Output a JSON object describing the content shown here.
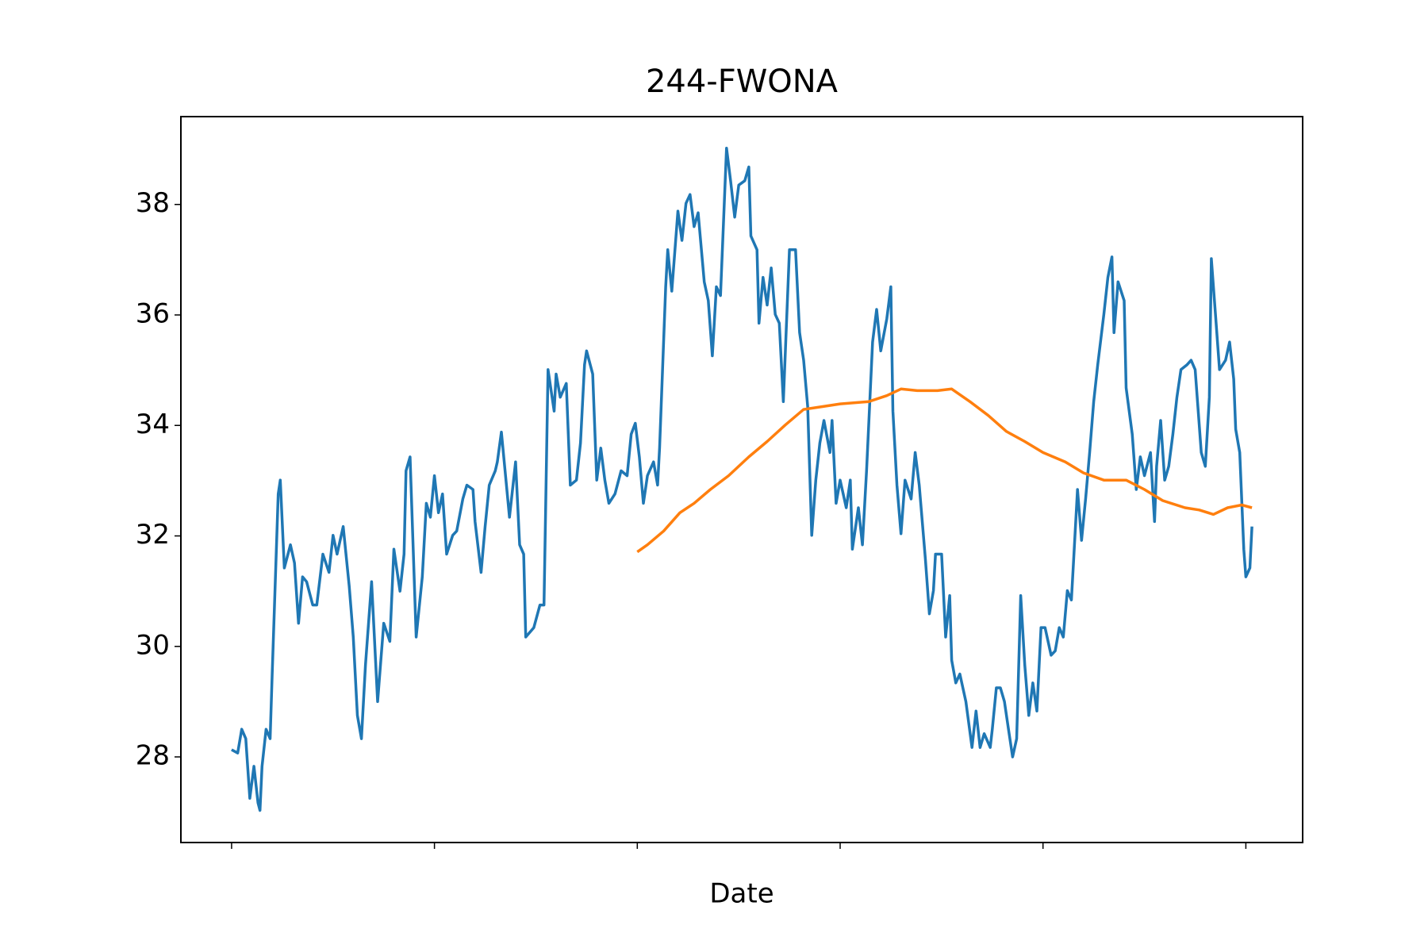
{
  "chart_data": {
    "type": "line",
    "title": "244-FWONA",
    "x_label": "Date",
    "xlim": [
      -25,
      528
    ],
    "xticks": [
      0,
      100,
      200,
      300,
      400,
      500
    ],
    "ylim": [
      26.45,
      39.59
    ],
    "yticks": [
      28,
      30,
      32,
      34,
      36,
      38
    ],
    "grid": false,
    "series": [
      {
        "color": "#1f77b4",
        "x": [
          0,
          3,
          5,
          7,
          9,
          11,
          13,
          14,
          15,
          17,
          19,
          20,
          23,
          24,
          26,
          29,
          31,
          33,
          35,
          37,
          40,
          42,
          45,
          48,
          50,
          52,
          55,
          58,
          60,
          62,
          64,
          66,
          69,
          72,
          75,
          78,
          80,
          83,
          85,
          86,
          88,
          91,
          94,
          96,
          98,
          100,
          102,
          104,
          106,
          109,
          111,
          114,
          116,
          119,
          120,
          123,
          125,
          127,
          130,
          131,
          133,
          137,
          140,
          142,
          144,
          145,
          149,
          152,
          154,
          156,
          159,
          160,
          162,
          165,
          167,
          170,
          172,
          174,
          175,
          178,
          180,
          182,
          184,
          186,
          189,
          192,
          195,
          197,
          199,
          201,
          203,
          205,
          208,
          210,
          211,
          214,
          215,
          217,
          220,
          222,
          224,
          226,
          228,
          230,
          233,
          235,
          237,
          239,
          241,
          244,
          246,
          248,
          250,
          253,
          255,
          256,
          259,
          260,
          262,
          264,
          266,
          268,
          270,
          272,
          275,
          278,
          280,
          282,
          284,
          286,
          288,
          290,
          292,
          295,
          296,
          298,
          300,
          303,
          305,
          306,
          309,
          311,
          313,
          316,
          318,
          320,
          323,
          325,
          326,
          328,
          330,
          332,
          335,
          337,
          339,
          342,
          344,
          346,
          347,
          350,
          352,
          354,
          355,
          357,
          359,
          362,
          365,
          367,
          369,
          371,
          374,
          375,
          377,
          379,
          381,
          383,
          385,
          387,
          389,
          391,
          393,
          395,
          397,
          399,
          401,
          404,
          406,
          408,
          410,
          412,
          414,
          415,
          417,
          419,
          421,
          423,
          425,
          427,
          430,
          432,
          434,
          435,
          437,
          440,
          441,
          444,
          446,
          448,
          450,
          453,
          455,
          456,
          458,
          460,
          462,
          464,
          466,
          468,
          471,
          473,
          475,
          478,
          480,
          482,
          483,
          485,
          487,
          490,
          492,
          494,
          495,
          497,
          499,
          500,
          502,
          503
        ],
        "values": [
          28.13,
          28.07,
          28.5,
          28.33,
          27.25,
          27.83,
          27.17,
          27.03,
          27.83,
          28.5,
          28.33,
          29.5,
          32.76,
          33.01,
          31.42,
          31.84,
          31.51,
          30.42,
          31.26,
          31.17,
          30.75,
          30.75,
          31.67,
          31.34,
          32.01,
          31.67,
          32.17,
          31.09,
          30.17,
          28.75,
          28.33,
          29.67,
          31.17,
          29.0,
          30.42,
          30.09,
          31.76,
          31.0,
          31.67,
          33.18,
          33.43,
          30.17,
          31.26,
          32.59,
          32.34,
          33.09,
          32.42,
          32.76,
          31.67,
          32.01,
          32.09,
          32.67,
          32.92,
          32.84,
          32.26,
          31.34,
          32.17,
          32.92,
          33.18,
          33.34,
          33.88,
          32.34,
          33.34,
          31.84,
          31.67,
          30.17,
          30.34,
          30.75,
          30.75,
          35.01,
          34.26,
          34.93,
          34.51,
          34.76,
          32.92,
          33.01,
          33.68,
          35.1,
          35.35,
          34.93,
          33.01,
          33.59,
          33.01,
          32.59,
          32.76,
          33.18,
          33.09,
          33.84,
          34.04,
          33.43,
          32.59,
          33.09,
          33.34,
          32.92,
          33.59,
          36.51,
          37.18,
          36.43,
          37.88,
          37.35,
          38.02,
          38.18,
          37.6,
          37.85,
          36.6,
          36.26,
          35.26,
          36.51,
          36.35,
          39.02,
          38.43,
          37.77,
          38.35,
          38.43,
          38.68,
          37.43,
          37.18,
          35.85,
          36.68,
          36.18,
          36.85,
          36.01,
          35.85,
          34.43,
          37.18,
          37.18,
          35.68,
          35.18,
          34.34,
          32.01,
          33.01,
          33.68,
          34.09,
          33.51,
          34.09,
          32.59,
          33.01,
          32.51,
          33.01,
          31.76,
          32.51,
          31.84,
          33.18,
          35.51,
          36.1,
          35.35,
          35.93,
          36.51,
          34.26,
          32.92,
          32.04,
          33.01,
          32.67,
          33.51,
          32.92,
          31.59,
          30.59,
          31.01,
          31.67,
          31.67,
          30.17,
          30.92,
          29.75,
          29.34,
          29.5,
          29.0,
          28.17,
          28.83,
          28.17,
          28.42,
          28.17,
          28.5,
          29.25,
          29.25,
          29.0,
          28.5,
          28.0,
          28.33,
          30.92,
          29.67,
          28.75,
          29.34,
          28.83,
          30.34,
          30.34,
          29.84,
          29.92,
          30.34,
          30.17,
          31.01,
          30.84,
          31.51,
          32.84,
          31.92,
          32.67,
          33.51,
          34.43,
          35.1,
          36.01,
          36.68,
          37.05,
          35.68,
          36.6,
          36.26,
          34.68,
          33.84,
          32.84,
          33.43,
          33.09,
          33.51,
          32.26,
          33.26,
          34.09,
          33.01,
          33.26,
          33.84,
          34.51,
          35.01,
          35.1,
          35.18,
          35.01,
          33.51,
          33.26,
          34.51,
          37.02,
          36.01,
          35.01,
          35.18,
          35.51,
          34.84,
          33.93,
          33.51,
          31.76,
          31.26,
          31.42,
          32.17
        ]
      },
      {
        "color": "#ff7f0e",
        "x": [
          200,
          205,
          213,
          221,
          228,
          236,
          245,
          255,
          264,
          273,
          282,
          291,
          300,
          314,
          323,
          330,
          338,
          348,
          355,
          364,
          373,
          382,
          391,
          400,
          411,
          420,
          430,
          441,
          450,
          459,
          470,
          477,
          484,
          491,
          498,
          503
        ],
        "values": [
          31.71,
          31.84,
          32.09,
          32.42,
          32.59,
          32.84,
          33.09,
          33.43,
          33.71,
          34.01,
          34.29,
          34.34,
          34.39,
          34.43,
          34.54,
          34.66,
          34.63,
          34.63,
          34.66,
          34.43,
          34.18,
          33.89,
          33.71,
          33.51,
          33.34,
          33.14,
          33.01,
          33.01,
          32.84,
          32.64,
          32.51,
          32.47,
          32.39,
          32.51,
          32.56,
          32.51
        ]
      }
    ]
  }
}
